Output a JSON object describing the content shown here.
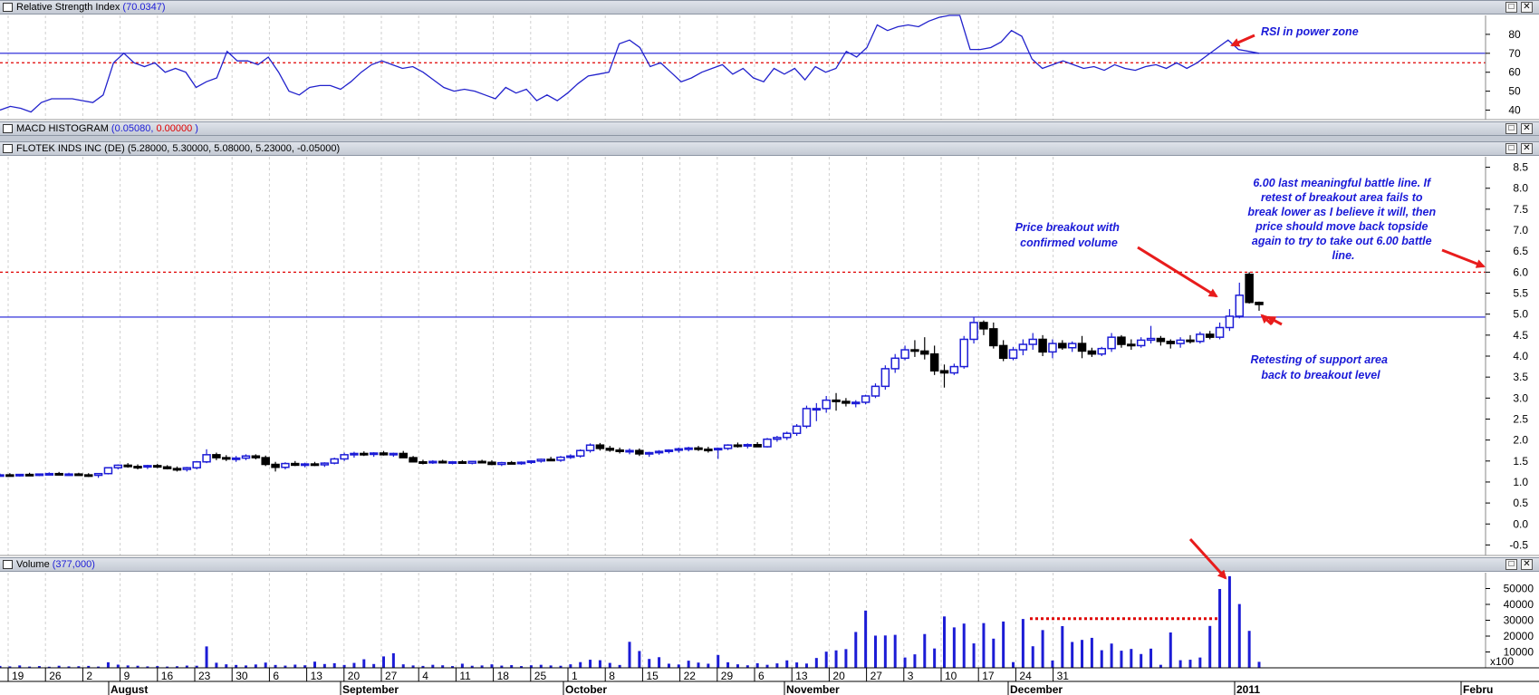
{
  "rsi_header": {
    "title": "Relative Strength Index",
    "value": "(70.0347)"
  },
  "macd_header": {
    "title": "MACD HISTOGRAM",
    "open": "(",
    "v1": "0.05080",
    "sep": ", ",
    "v2": "0.00000",
    "close": " )"
  },
  "price_header": {
    "title": "FLOTEK INDS INC (DE)",
    "values": "(5.28000, 5.30000, 5.08000, 5.23000, -0.05000)"
  },
  "volume_header": {
    "title": "Volume",
    "value": "(377,000)"
  },
  "window_buttons": {
    "restore": "□",
    "close": "✕"
  },
  "annotations": {
    "rsi": "RSI in power zone",
    "breakout": [
      "Price breakout with",
      "confirmed volume"
    ],
    "battle": [
      "6.00 last meaningful battle line.  If",
      "retest of breakout area fails to",
      "break lower as I believe it will, then",
      "price should move back topside",
      "again to try to take out 6.00 battle",
      "line."
    ],
    "retest": [
      "Retesting of support area",
      "back to breakout level"
    ]
  },
  "colors": {
    "up": "#1c1cd6",
    "down": "#000000",
    "rsi_line": "#2222cc",
    "level_red": "#e00000",
    "level_blue": "#1c1cd6",
    "arrow": "#e81c1c"
  },
  "x_axis": {
    "day_labels": [
      "19",
      "26",
      "2",
      "9",
      "16",
      "23",
      "30",
      "6",
      "13",
      "20",
      "27",
      "4",
      "11",
      "18",
      "25",
      "1",
      "8",
      "15",
      "22",
      "29",
      "6",
      "13",
      "20",
      "27",
      "3",
      "10",
      "17",
      "24",
      "31"
    ],
    "month_labels": [
      "August",
      "September",
      "October",
      "November",
      "December",
      "2011",
      "Febru"
    ]
  },
  "chart_data": [
    {
      "type": "line",
      "name": "Relative Strength Index",
      "y_ticks": [
        "80",
        "70",
        "60",
        "50",
        "40"
      ],
      "ylim": [
        35,
        90
      ],
      "levels": [
        70,
        65
      ],
      "values": [
        40,
        42,
        41,
        39,
        44,
        46,
        46,
        46,
        45,
        44,
        48,
        65,
        70,
        65,
        63,
        65,
        60,
        62,
        60,
        52,
        55,
        57,
        71,
        66,
        66,
        64,
        68,
        60,
        50,
        48,
        52,
        53,
        53,
        51,
        55,
        60,
        64,
        66,
        64,
        62,
        63,
        60,
        56,
        52,
        50,
        51,
        50,
        48,
        46,
        52,
        49,
        51,
        45,
        48,
        45,
        49,
        54,
        58,
        59,
        60,
        75,
        77,
        73,
        63,
        65,
        60,
        55,
        57,
        60,
        62,
        64,
        59,
        62,
        57,
        55,
        62,
        59,
        62,
        56,
        63,
        60,
        62,
        71,
        68,
        73,
        85,
        82,
        84,
        85,
        84,
        87,
        89,
        90,
        90,
        72,
        72,
        73,
        76,
        82,
        79,
        67,
        62,
        64,
        66,
        64,
        62,
        63,
        61,
        64,
        62,
        61,
        63,
        64,
        62,
        65,
        62,
        65,
        69,
        73,
        77,
        72,
        71,
        70.03
      ]
    },
    {
      "type": "candlestick",
      "name": "FLOTEK INDS INC (DE)",
      "y_ticks": [
        "8.5",
        "8.0",
        "7.5",
        "7.0",
        "6.5",
        "6.0",
        "5.5",
        "5.0",
        "4.5",
        "4.0",
        "3.5",
        "3.0",
        "2.5",
        "2.0",
        "1.5",
        "1.0",
        "0.5",
        "0.0",
        "-0.5"
      ],
      "ylim": [
        -0.75,
        8.75
      ],
      "levels": {
        "resistance": 6.0,
        "support": 4.93
      },
      "candles": [
        [
          1.16,
          1.2,
          1.14,
          1.17
        ],
        [
          1.17,
          1.21,
          1.14,
          1.16
        ],
        [
          1.16,
          1.19,
          1.13,
          1.18
        ],
        [
          1.18,
          1.22,
          1.15,
          1.17
        ],
        [
          1.17,
          1.2,
          1.14,
          1.19
        ],
        [
          1.19,
          1.23,
          1.16,
          1.2
        ],
        [
          1.2,
          1.24,
          1.17,
          1.18
        ],
        [
          1.18,
          1.22,
          1.15,
          1.19
        ],
        [
          1.19,
          1.22,
          1.16,
          1.17
        ],
        [
          1.17,
          1.21,
          1.12,
          1.16
        ],
        [
          1.16,
          1.2,
          1.1,
          1.2
        ],
        [
          1.2,
          1.35,
          1.18,
          1.34
        ],
        [
          1.34,
          1.42,
          1.3,
          1.4
        ],
        [
          1.4,
          1.45,
          1.34,
          1.37
        ],
        [
          1.37,
          1.42,
          1.3,
          1.36
        ],
        [
          1.36,
          1.41,
          1.31,
          1.39
        ],
        [
          1.39,
          1.43,
          1.33,
          1.36
        ],
        [
          1.36,
          1.4,
          1.3,
          1.32
        ],
        [
          1.32,
          1.37,
          1.25,
          1.3
        ],
        [
          1.3,
          1.36,
          1.25,
          1.34
        ],
        [
          1.34,
          1.5,
          1.3,
          1.48
        ],
        [
          1.48,
          1.78,
          1.45,
          1.65
        ],
        [
          1.65,
          1.7,
          1.52,
          1.58
        ],
        [
          1.58,
          1.64,
          1.5,
          1.55
        ],
        [
          1.55,
          1.62,
          1.48,
          1.57
        ],
        [
          1.57,
          1.66,
          1.52,
          1.62
        ],
        [
          1.62,
          1.66,
          1.54,
          1.58
        ],
        [
          1.58,
          1.63,
          1.38,
          1.42
        ],
        [
          1.42,
          1.48,
          1.25,
          1.35
        ],
        [
          1.35,
          1.47,
          1.3,
          1.44
        ],
        [
          1.44,
          1.5,
          1.38,
          1.4
        ],
        [
          1.4,
          1.46,
          1.35,
          1.43
        ],
        [
          1.43,
          1.48,
          1.38,
          1.41
        ],
        [
          1.41,
          1.47,
          1.36,
          1.45
        ],
        [
          1.45,
          1.58,
          1.42,
          1.55
        ],
        [
          1.55,
          1.7,
          1.5,
          1.65
        ],
        [
          1.65,
          1.72,
          1.58,
          1.68
        ],
        [
          1.68,
          1.73,
          1.62,
          1.66
        ],
        [
          1.66,
          1.71,
          1.6,
          1.69
        ],
        [
          1.69,
          1.74,
          1.63,
          1.65
        ],
        [
          1.65,
          1.7,
          1.6,
          1.68
        ],
        [
          1.68,
          1.74,
          1.62,
          1.58
        ],
        [
          1.58,
          1.62,
          1.5,
          1.48
        ],
        [
          1.48,
          1.53,
          1.42,
          1.47
        ],
        [
          1.47,
          1.52,
          1.43,
          1.49
        ],
        [
          1.49,
          1.53,
          1.44,
          1.46
        ],
        [
          1.46,
          1.5,
          1.42,
          1.48
        ],
        [
          1.48,
          1.52,
          1.43,
          1.45
        ],
        [
          1.45,
          1.5,
          1.42,
          1.49
        ],
        [
          1.49,
          1.53,
          1.45,
          1.47
        ],
        [
          1.47,
          1.52,
          1.4,
          1.42
        ],
        [
          1.42,
          1.48,
          1.38,
          1.46
        ],
        [
          1.46,
          1.5,
          1.42,
          1.44
        ],
        [
          1.44,
          1.49,
          1.41,
          1.47
        ],
        [
          1.47,
          1.52,
          1.43,
          1.5
        ],
        [
          1.5,
          1.56,
          1.46,
          1.54
        ],
        [
          1.54,
          1.6,
          1.5,
          1.52
        ],
        [
          1.52,
          1.62,
          1.48,
          1.59
        ],
        [
          1.59,
          1.66,
          1.55,
          1.62
        ],
        [
          1.62,
          1.78,
          1.58,
          1.75
        ],
        [
          1.75,
          1.92,
          1.7,
          1.88
        ],
        [
          1.88,
          1.93,
          1.75,
          1.8
        ],
        [
          1.8,
          1.86,
          1.72,
          1.76
        ],
        [
          1.76,
          1.82,
          1.68,
          1.73
        ],
        [
          1.73,
          1.8,
          1.66,
          1.75
        ],
        [
          1.75,
          1.8,
          1.62,
          1.67
        ],
        [
          1.67,
          1.72,
          1.6,
          1.7
        ],
        [
          1.7,
          1.76,
          1.65,
          1.73
        ],
        [
          1.73,
          1.78,
          1.68,
          1.76
        ],
        [
          1.76,
          1.82,
          1.7,
          1.79
        ],
        [
          1.79,
          1.84,
          1.73,
          1.81
        ],
        [
          1.81,
          1.86,
          1.74,
          1.78
        ],
        [
          1.78,
          1.84,
          1.7,
          1.77
        ],
        [
          1.77,
          1.82,
          1.55,
          1.8
        ],
        [
          1.8,
          1.9,
          1.76,
          1.88
        ],
        [
          1.88,
          1.94,
          1.82,
          1.86
        ],
        [
          1.86,
          1.92,
          1.8,
          1.89
        ],
        [
          1.89,
          1.95,
          1.84,
          1.84
        ],
        [
          1.84,
          2.05,
          1.82,
          2.02
        ],
        [
          2.02,
          2.1,
          1.96,
          2.06
        ],
        [
          2.06,
          2.2,
          2.0,
          2.16
        ],
        [
          2.16,
          2.38,
          2.1,
          2.33
        ],
        [
          2.33,
          2.82,
          2.28,
          2.75
        ],
        [
          2.75,
          2.88,
          2.45,
          2.75
        ],
        [
          2.75,
          3.05,
          2.65,
          2.95
        ],
        [
          2.95,
          3.12,
          2.7,
          2.92
        ],
        [
          2.92,
          3.0,
          2.8,
          2.88
        ],
        [
          2.88,
          2.95,
          2.78,
          2.9
        ],
        [
          2.9,
          3.08,
          2.85,
          3.05
        ],
        [
          3.05,
          3.35,
          3.0,
          3.28
        ],
        [
          3.28,
          3.78,
          3.2,
          3.7
        ],
        [
          3.7,
          4.05,
          3.6,
          3.95
        ],
        [
          3.95,
          4.25,
          3.9,
          4.15
        ],
        [
          4.15,
          4.38,
          3.98,
          4.12
        ],
        [
          4.12,
          4.45,
          3.92,
          4.05
        ],
        [
          4.05,
          4.25,
          3.55,
          3.65
        ],
        [
          3.65,
          3.8,
          3.25,
          3.6
        ],
        [
          3.6,
          3.82,
          3.55,
          3.75
        ],
        [
          3.75,
          4.48,
          3.7,
          4.4
        ],
        [
          4.4,
          4.92,
          4.3,
          4.8
        ],
        [
          4.8,
          4.85,
          4.5,
          4.65
        ],
        [
          4.65,
          4.8,
          4.18,
          4.25
        ],
        [
          4.25,
          4.38,
          3.88,
          3.95
        ],
        [
          3.95,
          4.22,
          3.9,
          4.15
        ],
        [
          4.15,
          4.4,
          4.02,
          4.28
        ],
        [
          4.28,
          4.55,
          4.15,
          4.4
        ],
        [
          4.4,
          4.5,
          4.0,
          4.1
        ],
        [
          4.1,
          4.4,
          3.95,
          4.3
        ],
        [
          4.3,
          4.38,
          4.15,
          4.2
        ],
        [
          4.2,
          4.35,
          4.1,
          4.3
        ],
        [
          4.3,
          4.48,
          3.95,
          4.12
        ],
        [
          4.12,
          4.2,
          3.98,
          4.05
        ],
        [
          4.05,
          4.22,
          4.0,
          4.18
        ],
        [
          4.18,
          4.55,
          4.1,
          4.45
        ],
        [
          4.45,
          4.5,
          4.2,
          4.28
        ],
        [
          4.28,
          4.4,
          4.15,
          4.25
        ],
        [
          4.25,
          4.45,
          4.2,
          4.38
        ],
        [
          4.38,
          4.72,
          4.3,
          4.42
        ],
        [
          4.42,
          4.48,
          4.25,
          4.35
        ],
        [
          4.35,
          4.4,
          4.18,
          4.3
        ],
        [
          4.3,
          4.45,
          4.2,
          4.38
        ],
        [
          4.38,
          4.5,
          4.3,
          4.35
        ],
        [
          4.35,
          4.58,
          4.3,
          4.52
        ],
        [
          4.52,
          4.6,
          4.4,
          4.45
        ],
        [
          4.45,
          4.8,
          4.4,
          4.68
        ],
        [
          4.68,
          5.12,
          4.6,
          4.95
        ],
        [
          4.95,
          5.75,
          4.9,
          5.45
        ],
        [
          5.95,
          6.0,
          5.25,
          5.28
        ],
        [
          5.28,
          5.3,
          5.08,
          5.23
        ]
      ]
    },
    {
      "type": "bar",
      "name": "Volume",
      "y_ticks": [
        "50000",
        "40000",
        "30000",
        "20000",
        "10000"
      ],
      "unit_label": "x100",
      "ylim": [
        0,
        60000
      ],
      "level": 31000,
      "values": [
        1200,
        900,
        1500,
        800,
        1100,
        700,
        1300,
        900,
        1000,
        1200,
        800,
        3500,
        2000,
        1500,
        1300,
        900,
        1100,
        800,
        1000,
        1400,
        1300,
        13500,
        3200,
        2200,
        1800,
        1500,
        2100,
        3300,
        1800,
        1400,
        2000,
        1600,
        3900,
        2400,
        2900,
        1800,
        3100,
        5400,
        2400,
        7200,
        9200,
        2200,
        1500,
        1200,
        1900,
        1600,
        1100,
        2600,
        1300,
        1500,
        2200,
        1400,
        1700,
        1100,
        1600,
        1900,
        1500,
        1300,
        2200,
        3600,
        5100,
        4800,
        3100,
        1800,
        16400,
        10600,
        5600,
        6700,
        2600,
        2100,
        4500,
        3300,
        2600,
        8100,
        3500,
        2200,
        1600,
        2900,
        1900,
        2800,
        4700,
        3400,
        2700,
        6200,
        10200,
        11000,
        11800,
        22600,
        36100,
        20300,
        20400,
        20800,
        6500,
        8500,
        21300,
        12200,
        32400,
        25500,
        27900,
        15400,
        28200,
        18400,
        29200,
        3600,
        30800,
        13600,
        23800,
        4600,
        26300,
        16300,
        17600,
        18900,
        11100,
        15300,
        10800,
        11900,
        8700,
        12100,
        1900,
        22300,
        4800,
        5100,
        6500,
        26400,
        49700,
        57800,
        40200,
        23300,
        3770
      ]
    }
  ]
}
